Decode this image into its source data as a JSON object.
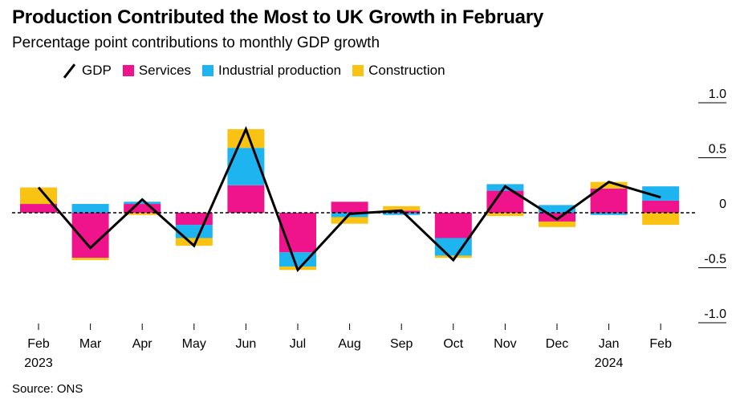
{
  "title": "Production Contributed the Most to UK Growth in February",
  "subtitle": "Percentage point contributions to monthly GDP growth",
  "source": "Source: ONS",
  "colors": {
    "gdp": "#000000",
    "services": "#f0148c",
    "industrial": "#1eb4f0",
    "construction": "#fac314",
    "zero_line": "#000000",
    "grid": "#000000"
  },
  "legend": [
    {
      "key": "gdp",
      "label": "GDP",
      "kind": "line"
    },
    {
      "key": "services",
      "label": "Services",
      "kind": "swatch"
    },
    {
      "key": "industrial",
      "label": "Industrial production",
      "kind": "swatch"
    },
    {
      "key": "construction",
      "label": "Construction",
      "kind": "swatch"
    }
  ],
  "chart_data": {
    "type": "bar",
    "stacked": true,
    "title": "Production Contributed the Most to UK Growth in February",
    "subtitle": "Percentage point contributions to monthly GDP growth",
    "categories": [
      "Feb",
      "Mar",
      "Apr",
      "May",
      "Jun",
      "Jul",
      "Aug",
      "Sep",
      "Oct",
      "Nov",
      "Dec",
      "Jan",
      "Feb"
    ],
    "year_labels": [
      "2023",
      "",
      "",
      "",
      "",
      "",
      "",
      "",
      "",
      "",
      "",
      "2024",
      ""
    ],
    "y_ticks": [
      {
        "value": 1.0,
        "label": "1.0"
      },
      {
        "value": 0.5,
        "label": "0.5"
      },
      {
        "value": 0,
        "label": "0"
      },
      {
        "value": -0.5,
        "label": "-0.5"
      },
      {
        "value": -1.0,
        "label": "-1.0"
      }
    ],
    "ylim": [
      -1.05,
      1.05
    ],
    "y_axis_position": "right",
    "legend_position": "top-left",
    "series": [
      {
        "name": "Services",
        "key": "services",
        "values": [
          0.08,
          -0.41,
          0.08,
          -0.11,
          0.25,
          -0.36,
          0.1,
          0.02,
          -0.23,
          0.2,
          -0.08,
          0.22,
          0.11
        ]
      },
      {
        "name": "Industrial production",
        "key": "industrial",
        "values": [
          0.0,
          0.08,
          0.02,
          -0.12,
          0.34,
          -0.13,
          -0.04,
          -0.02,
          -0.16,
          0.06,
          0.07,
          -0.02,
          0.13
        ]
      },
      {
        "name": "Construction",
        "key": "construction",
        "values": [
          0.15,
          -0.02,
          -0.02,
          -0.07,
          0.17,
          -0.03,
          -0.06,
          0.04,
          -0.02,
          -0.03,
          -0.05,
          0.06,
          -0.11
        ]
      }
    ],
    "line": {
      "name": "GDP",
      "key": "gdp",
      "values": [
        0.23,
        -0.32,
        0.12,
        -0.3,
        0.76,
        -0.52,
        -0.01,
        0.02,
        -0.43,
        0.24,
        -0.06,
        0.28,
        0.14
      ]
    }
  }
}
